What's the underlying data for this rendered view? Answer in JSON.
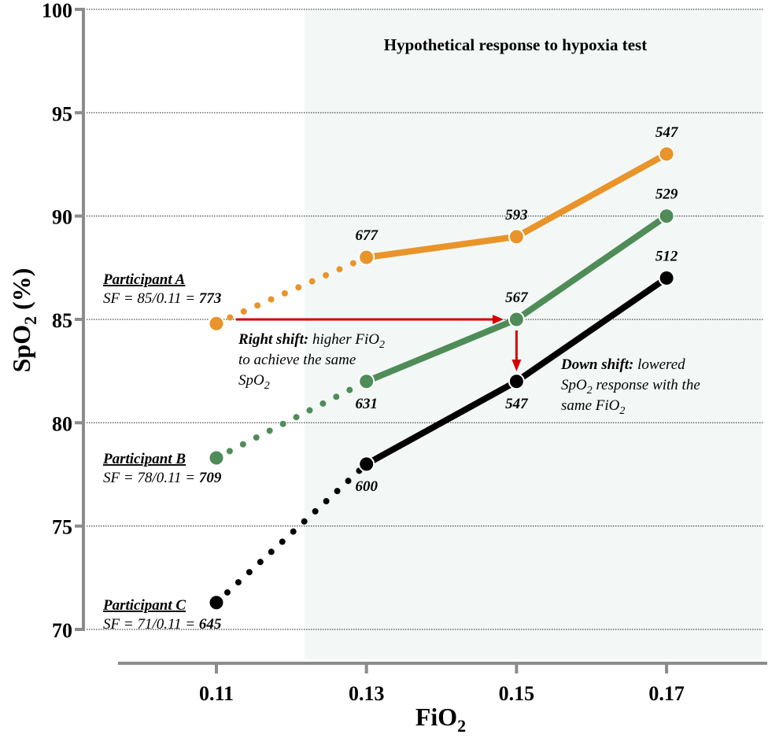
{
  "chart_data": {
    "type": "line",
    "title": "Hypothetical response to hypoxia test",
    "xlabel": "FiO2",
    "ylabel": "SpO2 (%)",
    "x": [
      0.11,
      0.13,
      0.15,
      0.17
    ],
    "x_tick_labels": [
      "0.11",
      "0.13",
      "0.15",
      "0.17"
    ],
    "y_ticks": [
      70,
      75,
      80,
      85,
      90,
      95,
      100
    ],
    "ylim": [
      70,
      100
    ],
    "grid": "horizontal dotted",
    "shaded_region_x_from": 0.122,
    "series": [
      {
        "name": "Participant A",
        "color": "#e8942a",
        "values": [
          84.8,
          88,
          89,
          93
        ],
        "labels": [
          "",
          "677",
          "593",
          "547"
        ],
        "label_pos": [
          "",
          "above",
          "above",
          "above"
        ],
        "sf_text": "SF = 85/0.11 = ",
        "sf_value": "773"
      },
      {
        "name": "Participant B",
        "color": "#4f8c58",
        "values": [
          78.3,
          82,
          85,
          90
        ],
        "labels": [
          "",
          "631",
          "567",
          "529"
        ],
        "label_pos": [
          "",
          "below",
          "above",
          "above"
        ],
        "sf_text": "SF = 78/0.11 = ",
        "sf_value": "709"
      },
      {
        "name": "Participant C",
        "color": "#000000",
        "values": [
          71.3,
          78,
          82,
          87
        ],
        "labels": [
          "",
          "600",
          "547",
          "512"
        ],
        "label_pos": [
          "",
          "below",
          "below",
          "above"
        ],
        "sf_text": "SF = 71/0.11 = ",
        "sf_value": "645"
      }
    ],
    "annotations": {
      "arrow_color": "#d40000",
      "right_shift": {
        "bold": "Right shift:",
        "l1": " higher FiO",
        "l2": "to achieve the same",
        "l3": "SpO"
      },
      "down_shift": {
        "bold": "Down shift:",
        "l1": " lowered",
        "l2a": "SpO",
        "l2b": " response with the",
        "l3": "same FiO"
      },
      "subscript": "2"
    }
  }
}
